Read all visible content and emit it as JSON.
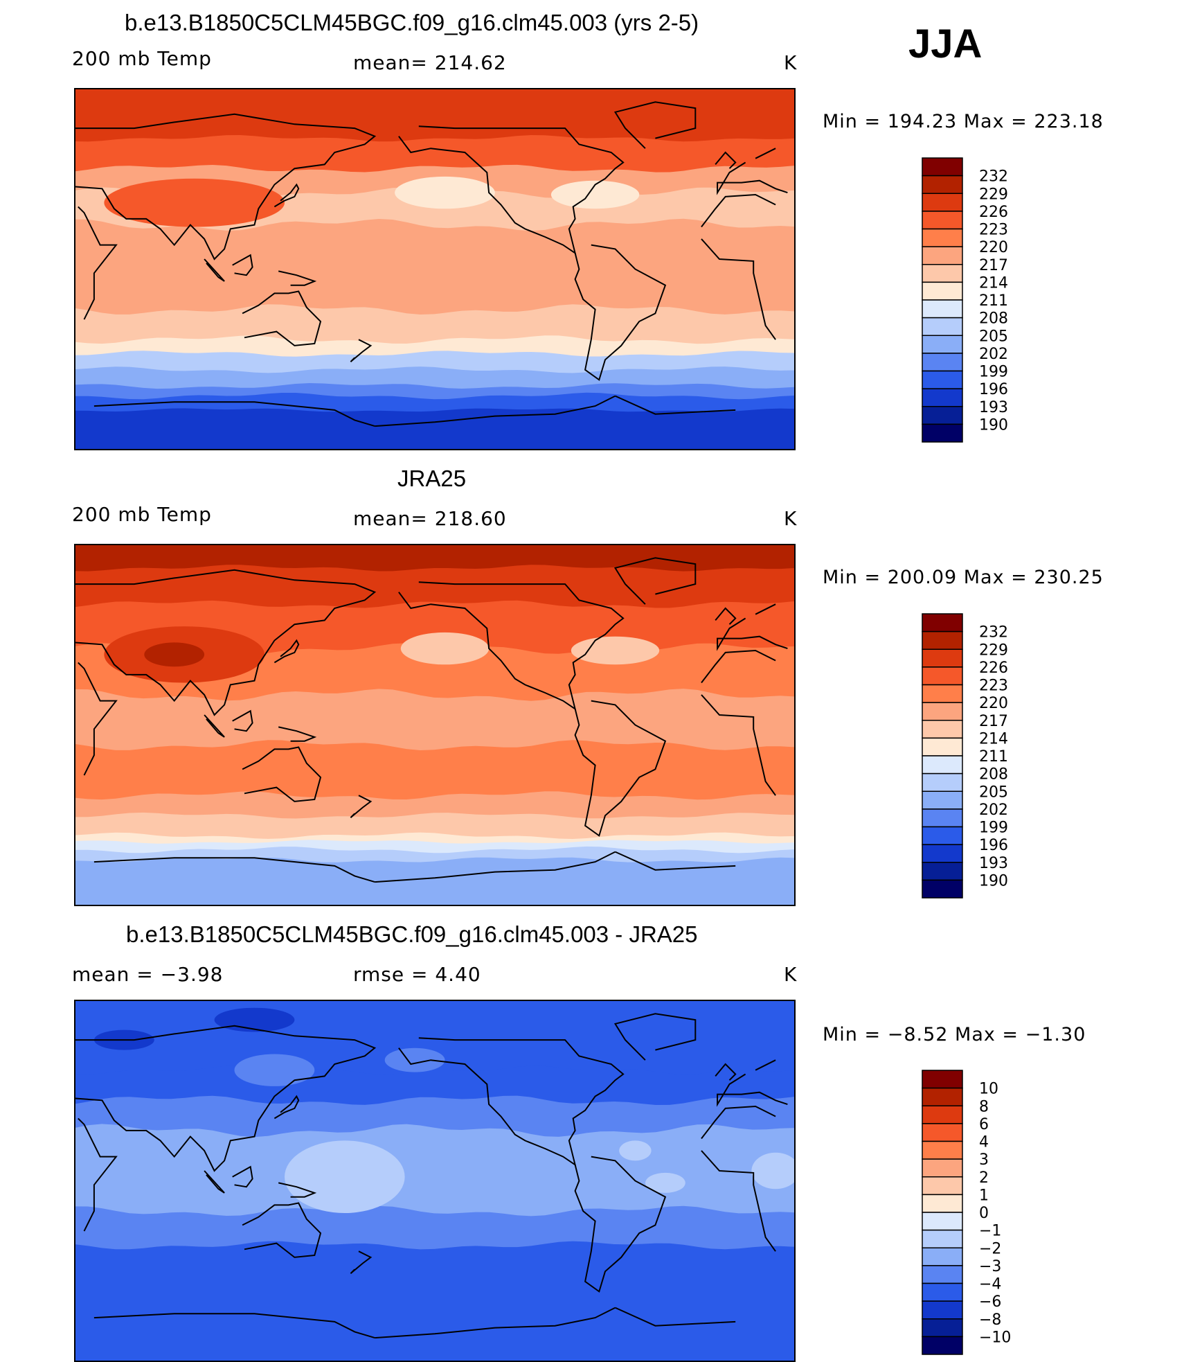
{
  "season_label": "JJA",
  "units": "K",
  "chart_data": [
    {
      "type": "heatmap",
      "id": "model",
      "title": "b.e13.B1850C5CLM45BGC.f09_g16.clm45.003 (yrs 2-5)",
      "left_label": "200 mb Temp",
      "center_label": "mean= 214.62",
      "right_label": "K",
      "mean": 214.62,
      "min_max_text": "Min  =  194.23  Max  =  223.18",
      "min": 194.23,
      "max": 223.18,
      "colorbar": {
        "levels": [
          "232",
          "229",
          "226",
          "223",
          "220",
          "217",
          "214",
          "211",
          "208",
          "205",
          "202",
          "199",
          "196",
          "193",
          "190"
        ],
        "colors": [
          "#800000",
          "#b22200",
          "#dd3a10",
          "#f5582a",
          "#ff7f4a",
          "#fca57f",
          "#fdc8aa",
          "#fee9d4",
          "#dce9fc",
          "#b5cdfb",
          "#8aaef7",
          "#5a84f2",
          "#2b5be9",
          "#1339cc",
          "#061f96",
          "#000066"
        ]
      },
      "bands": [
        {
          "lat": 90,
          "level": 13,
          "amp": 2
        },
        {
          "lat": 65,
          "level": 12,
          "amp": 3
        },
        {
          "lat": 50,
          "level": 10,
          "amp": 4
        },
        {
          "lat": 38,
          "level": 9,
          "amp": 5
        },
        {
          "lat": 22,
          "level": 10,
          "amp": 6
        },
        {
          "lat": -20,
          "level": 9,
          "amp": 5
        },
        {
          "lat": -35,
          "level": 8,
          "amp": 4
        },
        {
          "lat": -42,
          "level": 6,
          "amp": 3
        },
        {
          "lat": -50,
          "level": 5,
          "amp": 3
        },
        {
          "lat": -58,
          "level": 4,
          "amp": 3
        },
        {
          "lat": -63,
          "level": 3,
          "amp": 3
        },
        {
          "lat": -70,
          "level": 2,
          "amp": 2
        }
      ],
      "blobs": [
        {
          "lon": 90,
          "lat": 33,
          "rx": 45,
          "ry": 12,
          "level": 12
        },
        {
          "lon": 215,
          "lat": 38,
          "rx": 25,
          "ry": 8,
          "level": 8
        },
        {
          "lon": 290,
          "lat": 37,
          "rx": 22,
          "ry": 7,
          "level": 8
        }
      ]
    },
    {
      "type": "heatmap",
      "id": "obs",
      "title": "JRA25",
      "left_label": "200 mb Temp",
      "center_label": "mean= 218.60",
      "right_label": "K",
      "mean": 218.6,
      "min_max_text": "Min  =  200.09  Max  =  230.25",
      "min": 200.09,
      "max": 230.25,
      "colorbar": {
        "levels": [
          "232",
          "229",
          "226",
          "223",
          "220",
          "217",
          "214",
          "211",
          "208",
          "205",
          "202",
          "199",
          "196",
          "193",
          "190"
        ],
        "colors": [
          "#800000",
          "#b22200",
          "#dd3a10",
          "#f5582a",
          "#ff7f4a",
          "#fca57f",
          "#fdc8aa",
          "#fee9d4",
          "#dce9fc",
          "#b5cdfb",
          "#8aaef7",
          "#5a84f2",
          "#2b5be9",
          "#1339cc",
          "#061f96",
          "#000066"
        ]
      },
      "bands": [
        {
          "lat": 90,
          "level": 14,
          "amp": 2
        },
        {
          "lat": 78,
          "level": 13,
          "amp": 3
        },
        {
          "lat": 60,
          "level": 12,
          "amp": 4
        },
        {
          "lat": 38,
          "level": 11,
          "amp": 5
        },
        {
          "lat": 15,
          "level": 10,
          "amp": 6
        },
        {
          "lat": -10,
          "level": 11,
          "amp": 5
        },
        {
          "lat": -35,
          "level": 10,
          "amp": 4
        },
        {
          "lat": -45,
          "level": 9,
          "amp": 3
        },
        {
          "lat": -55,
          "level": 8,
          "amp": 3
        },
        {
          "lat": -58,
          "level": 7,
          "amp": 2
        },
        {
          "lat": -62,
          "level": 6,
          "amp": 3
        },
        {
          "lat": -67,
          "level": 5,
          "amp": 3
        }
      ],
      "blobs": [
        {
          "lon": 85,
          "lat": 35,
          "rx": 40,
          "ry": 14,
          "level": 13
        },
        {
          "lon": 80,
          "lat": 35,
          "rx": 15,
          "ry": 6,
          "level": 14
        },
        {
          "lon": 215,
          "lat": 38,
          "rx": 22,
          "ry": 8,
          "level": 9
        },
        {
          "lon": 300,
          "lat": 37,
          "rx": 22,
          "ry": 7,
          "level": 9
        }
      ]
    },
    {
      "type": "heatmap",
      "id": "diff",
      "title": "b.e13.B1850C5CLM45BGC.f09_g16.clm45.003 - JRA25",
      "left_label": "mean =    −3.98",
      "center_label": "rmse =     4.40",
      "right_label": "K",
      "mean": -3.98,
      "rmse": 4.4,
      "min_max_text": "Min  =   −8.52  Max  =   −1.30",
      "min": -8.52,
      "max": -1.3,
      "colorbar": {
        "levels": [
          "10",
          "8",
          "6",
          "4",
          "3",
          "2",
          "1",
          "0",
          "−1",
          "−2",
          "−3",
          "−4",
          "−6",
          "−8",
          "−10"
        ],
        "colors": [
          "#800000",
          "#b22200",
          "#dd3a10",
          "#f5582a",
          "#ff7f4a",
          "#fca57f",
          "#fdc8aa",
          "#fee9d4",
          "#dce9fc",
          "#b5cdfb",
          "#8aaef7",
          "#5a84f2",
          "#2b5be9",
          "#1339cc",
          "#061f96",
          "#000066"
        ]
      },
      "bands": [
        {
          "lat": 90,
          "level": 3,
          "amp": 3
        },
        {
          "lat": 55,
          "level": 3,
          "amp": 4
        },
        {
          "lat": 40,
          "level": 4,
          "amp": 5
        },
        {
          "lat": 25,
          "level": 5,
          "amp": 6
        },
        {
          "lat": -15,
          "level": 4,
          "amp": 5
        },
        {
          "lat": -32,
          "level": 3,
          "amp": 4
        }
      ],
      "blobs": [
        {
          "lon": 165,
          "lat": 2,
          "rx": 30,
          "ry": 18,
          "level": 6
        },
        {
          "lon": 20,
          "lat": 5,
          "rx": 12,
          "ry": 9,
          "level": 6
        },
        {
          "lon": 310,
          "lat": 15,
          "rx": 8,
          "ry": 5,
          "level": 6
        },
        {
          "lon": 325,
          "lat": -1,
          "rx": 10,
          "ry": 5,
          "level": 6
        },
        {
          "lon": 55,
          "lat": 70,
          "rx": 15,
          "ry": 5,
          "level": 2
        },
        {
          "lon": 120,
          "lat": 80,
          "rx": 20,
          "ry": 6,
          "level": 2
        },
        {
          "lon": 130,
          "lat": 55,
          "rx": 20,
          "ry": 8,
          "level": 4
        },
        {
          "lon": 200,
          "lat": 60,
          "rx": 15,
          "ry": 6,
          "level": 4
        }
      ]
    }
  ]
}
